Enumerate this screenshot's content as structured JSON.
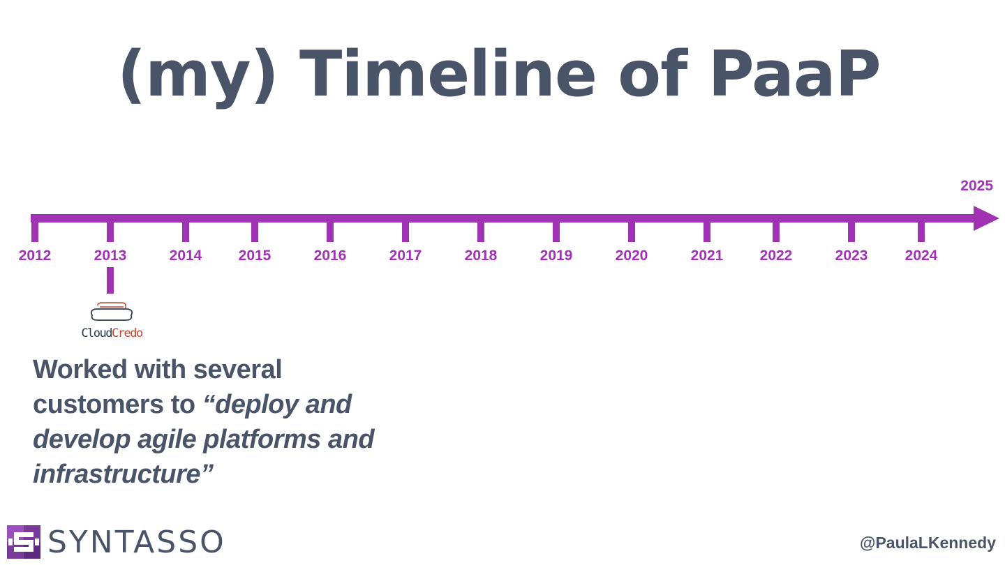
{
  "slide": {
    "title": "(my) Timeline of PaaP",
    "timeline": {
      "color": "#a032b4",
      "years": [
        "2012",
        "2013",
        "2014",
        "2015",
        "2016",
        "2017",
        "2018",
        "2019",
        "2020",
        "2021",
        "2022",
        "2023",
        "2024"
      ],
      "end_year": "2025",
      "highlighted_year": "2013"
    },
    "event": {
      "year": "2013",
      "logo": {
        "part1": "Cloud",
        "part2": "Credo",
        "icon": "cloud-icon"
      },
      "description_plain": "Worked with several customers to ",
      "description_quote": "“deploy and develop agile platforms and infrastructure”"
    },
    "footer": {
      "brand": "SYNTASSO",
      "brand_icon": "syntasso-logo-icon",
      "handle": "@PaulaLKennedy"
    },
    "colors": {
      "accent": "#a032b4",
      "text": "#4a5468",
      "logo_red": "#c0462c"
    }
  }
}
